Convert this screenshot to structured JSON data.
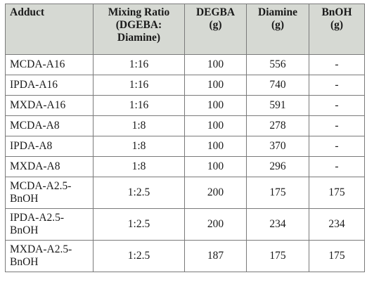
{
  "table": {
    "headers": {
      "adduct": "Adduct",
      "mixing_ratio": [
        "Mixing Ratio",
        "(DGEBA:",
        "Diamine)"
      ],
      "degba": [
        "DEGBA",
        "(g)"
      ],
      "diamine": [
        "Diamine",
        "(g)"
      ],
      "bnoh": [
        "BnOH",
        "(g)"
      ]
    },
    "rows": [
      {
        "adduct": "MCDA-A16",
        "ratio": "1:16",
        "degba": "100",
        "diamine": "556",
        "bnoh": "-"
      },
      {
        "adduct": "IPDA-A16",
        "ratio": "1:16",
        "degba": "100",
        "diamine": "740",
        "bnoh": "-"
      },
      {
        "adduct": "MXDA-A16",
        "ratio": "1:16",
        "degba": "100",
        "diamine": "591",
        "bnoh": "-"
      },
      {
        "adduct": "MCDA-A8",
        "ratio": "1:8",
        "degba": "100",
        "diamine": "278",
        "bnoh": "-"
      },
      {
        "adduct": "IPDA-A8",
        "ratio": "1:8",
        "degba": "100",
        "diamine": "370",
        "bnoh": "-"
      },
      {
        "adduct": "MXDA-A8",
        "ratio": "1:8",
        "degba": "100",
        "diamine": "296",
        "bnoh": "-"
      },
      {
        "adduct": "MCDA-A2.5-\nBnOH",
        "ratio": "1:2.5",
        "degba": "200",
        "diamine": "175",
        "bnoh": "175"
      },
      {
        "adduct": "IPDA-A2.5-\nBnOH",
        "ratio": "1:2.5",
        "degba": "200",
        "diamine": "234",
        "bnoh": "234"
      },
      {
        "adduct": "MXDA-A2.5-\nBnOH",
        "ratio": "1:2.5",
        "degba": "187",
        "diamine": "175",
        "bnoh": "175"
      }
    ]
  }
}
